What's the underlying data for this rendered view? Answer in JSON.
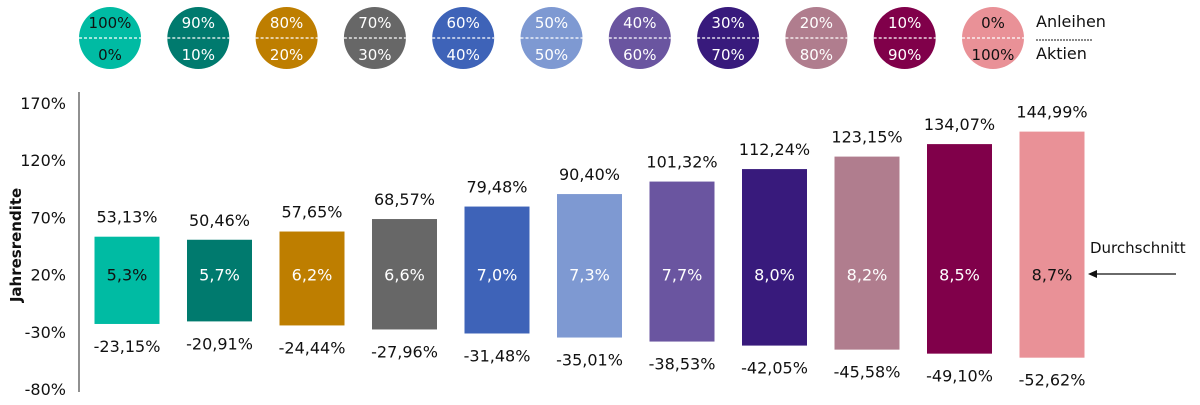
{
  "chart_data": {
    "type": "bar",
    "ylabel": "Jahresrendite",
    "ylim": [
      -80,
      170
    ],
    "yticks": [
      "170%",
      "120%",
      "70%",
      "20%",
      "-30%",
      "-80%"
    ],
    "ytick_values": [
      170,
      120,
      70,
      20,
      -30,
      -80
    ],
    "legend": {
      "top": "Anleihen",
      "bottom": "Aktien"
    },
    "average_label": "Durchschnitt",
    "categories": [
      {
        "bonds": "100%",
        "stocks": "0%",
        "color": "#00BBA3",
        "text_color": "#111111",
        "max": 53.13,
        "min": -23.15,
        "max_label": "53,13%",
        "min_label": "-23,15%",
        "avg_label": "5,3%"
      },
      {
        "bonds": "90%",
        "stocks": "10%",
        "color": "#007A6E",
        "text_color": "#ffffff",
        "max": 50.46,
        "min": -20.91,
        "max_label": "50,46%",
        "min_label": "-20,91%",
        "avg_label": "5,7%"
      },
      {
        "bonds": "80%",
        "stocks": "20%",
        "color": "#BE7E00",
        "text_color": "#ffffff",
        "max": 57.65,
        "min": -24.44,
        "max_label": "57,65%",
        "min_label": "-24,44%",
        "avg_label": "6,2%"
      },
      {
        "bonds": "70%",
        "stocks": "30%",
        "color": "#676767",
        "text_color": "#ffffff",
        "max": 68.57,
        "min": -27.96,
        "max_label": "68,57%",
        "min_label": "-27,96%",
        "avg_label": "6,6%"
      },
      {
        "bonds": "60%",
        "stocks": "40%",
        "color": "#3E63B8",
        "text_color": "#ffffff",
        "max": 79.48,
        "min": -31.48,
        "max_label": "79,48%",
        "min_label": "-31,48%",
        "avg_label": "7,0%"
      },
      {
        "bonds": "50%",
        "stocks": "50%",
        "color": "#7E99D2",
        "text_color": "#ffffff",
        "max": 90.4,
        "min": -35.01,
        "max_label": "90,40%",
        "min_label": "-35,01%",
        "avg_label": "7,3%"
      },
      {
        "bonds": "40%",
        "stocks": "60%",
        "color": "#6A55A0",
        "text_color": "#ffffff",
        "max": 101.32,
        "min": -38.53,
        "max_label": "101,32%",
        "min_label": "-38,53%",
        "avg_label": "7,7%"
      },
      {
        "bonds": "30%",
        "stocks": "70%",
        "color": "#381A7C",
        "text_color": "#ffffff",
        "max": 112.24,
        "min": -42.05,
        "max_label": "112,24%",
        "min_label": "-42,05%",
        "avg_label": "8,0%"
      },
      {
        "bonds": "20%",
        "stocks": "80%",
        "color": "#B07D8E",
        "text_color": "#ffffff",
        "max": 123.15,
        "min": -45.58,
        "max_label": "123,15%",
        "min_label": "-45,58%",
        "avg_label": "8,2%"
      },
      {
        "bonds": "10%",
        "stocks": "90%",
        "color": "#80004A",
        "text_color": "#ffffff",
        "max": 134.07,
        "min": -49.1,
        "max_label": "134,07%",
        "min_label": "-49,10%",
        "avg_label": "8,5%"
      },
      {
        "bonds": "0%",
        "stocks": "100%",
        "color": "#E99197",
        "text_color": "#111111",
        "max": 144.99,
        "min": -52.62,
        "max_label": "144,99%",
        "min_label": "-52,62%",
        "avg_label": "8,7%"
      }
    ]
  }
}
